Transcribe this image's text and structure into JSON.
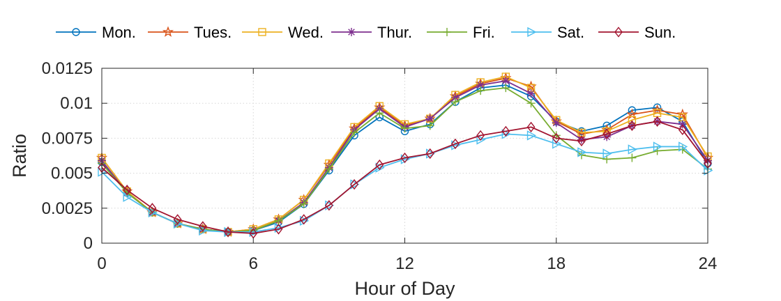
{
  "chart_data": {
    "type": "line",
    "title": "",
    "xlabel": "Hour of Day",
    "ylabel": "Ratio",
    "xlim": [
      0,
      24
    ],
    "ylim": [
      0,
      0.0125
    ],
    "xticks": [
      0,
      6,
      12,
      18,
      24
    ],
    "xtick_labels": [
      "0",
      "6",
      "12",
      "18",
      "24"
    ],
    "yticks": [
      0,
      0.0025,
      0.005,
      0.0075,
      0.01,
      0.0125
    ],
    "ytick_labels": [
      "0",
      "0.0025",
      "0.005",
      "0.0075",
      "0.01",
      "0.0125"
    ],
    "grid": true,
    "legend_position": "top",
    "x": [
      0,
      1,
      2,
      3,
      4,
      5,
      6,
      7,
      8,
      9,
      10,
      11,
      12,
      13,
      14,
      15,
      16,
      17,
      18,
      19,
      20,
      21,
      22,
      23,
      24
    ],
    "series": [
      {
        "name": "Mon.",
        "color": "#0072BD",
        "marker": "circle",
        "values": [
          0.0058,
          0.0036,
          0.0022,
          0.0014,
          0.001,
          0.0008,
          0.0009,
          0.0015,
          0.0028,
          0.0052,
          0.0077,
          0.009,
          0.008,
          0.0085,
          0.0101,
          0.0111,
          0.0113,
          0.0105,
          0.0087,
          0.008,
          0.0084,
          0.0095,
          0.0097,
          0.0087,
          0.0057
        ]
      },
      {
        "name": "Tues.",
        "color": "#D95319",
        "marker": "star",
        "values": [
          0.0061,
          0.0037,
          0.0022,
          0.0014,
          0.001,
          0.0008,
          0.001,
          0.0017,
          0.0031,
          0.0056,
          0.0082,
          0.0097,
          0.0084,
          0.0089,
          0.0105,
          0.0114,
          0.0118,
          0.0112,
          0.0087,
          0.0078,
          0.0081,
          0.0092,
          0.0095,
          0.0092,
          0.0061
        ]
      },
      {
        "name": "Wed.",
        "color": "#EDB120",
        "marker": "square",
        "values": [
          0.0061,
          0.0037,
          0.0022,
          0.0014,
          0.001,
          0.0008,
          0.001,
          0.0017,
          0.0031,
          0.0057,
          0.0083,
          0.0098,
          0.0085,
          0.0089,
          0.0106,
          0.0115,
          0.0119,
          0.0111,
          0.0088,
          0.0079,
          0.008,
          0.0088,
          0.0093,
          0.009,
          0.0062
        ]
      },
      {
        "name": "Thur.",
        "color": "#7E2F8E",
        "marker": "asterisk",
        "values": [
          0.0059,
          0.0036,
          0.0022,
          0.0014,
          0.001,
          0.0008,
          0.0009,
          0.0016,
          0.0029,
          0.0054,
          0.0081,
          0.0096,
          0.0083,
          0.0089,
          0.0104,
          0.0113,
          0.0116,
          0.0107,
          0.0086,
          0.0074,
          0.0076,
          0.0084,
          0.0087,
          0.0085,
          0.0059
        ]
      },
      {
        "name": "Fri.",
        "color": "#77AC30",
        "marker": "plus",
        "values": [
          0.0057,
          0.0036,
          0.0022,
          0.0014,
          0.001,
          0.0008,
          0.0009,
          0.0016,
          0.0028,
          0.0053,
          0.0079,
          0.0093,
          0.0082,
          0.0084,
          0.0101,
          0.0109,
          0.0111,
          0.01,
          0.0077,
          0.0063,
          0.006,
          0.0061,
          0.0066,
          0.0067,
          0.0053
        ]
      },
      {
        "name": "Sat.",
        "color": "#4DBEEE",
        "marker": "triangle-right",
        "values": [
          0.0051,
          0.0033,
          0.0022,
          0.0014,
          0.0009,
          0.0008,
          0.0008,
          0.0011,
          0.0016,
          0.0027,
          0.0042,
          0.0054,
          0.006,
          0.0064,
          0.007,
          0.0074,
          0.0078,
          0.0077,
          0.0071,
          0.0065,
          0.0064,
          0.0067,
          0.0069,
          0.0069,
          0.0052
        ]
      },
      {
        "name": "Sun.",
        "color": "#A2142F",
        "marker": "diamond",
        "values": [
          0.0054,
          0.0038,
          0.0025,
          0.0017,
          0.0012,
          0.0008,
          0.0007,
          0.001,
          0.0017,
          0.0027,
          0.0042,
          0.0056,
          0.0061,
          0.0064,
          0.0071,
          0.0077,
          0.008,
          0.0083,
          0.0075,
          0.0073,
          0.0078,
          0.0084,
          0.0087,
          0.0081,
          0.0057
        ]
      }
    ]
  }
}
